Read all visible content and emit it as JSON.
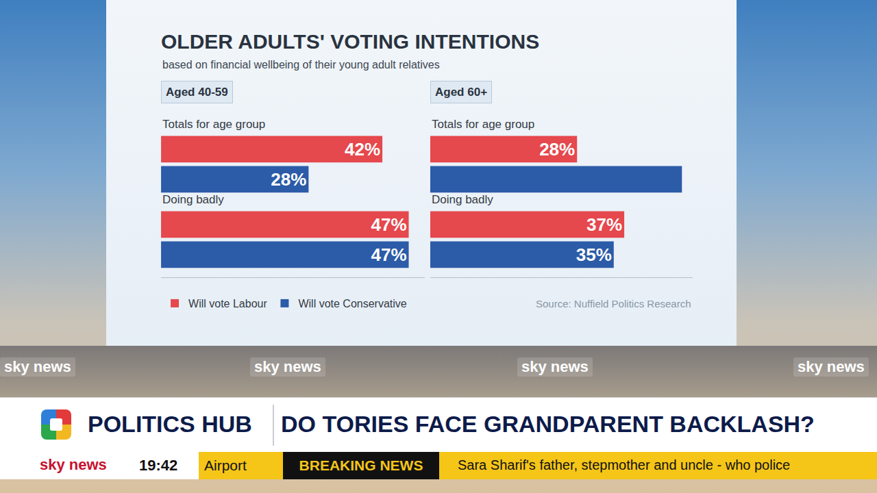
{
  "chart_data": {
    "type": "bar",
    "orientation": "horizontal",
    "title": "OLDER ADULTS' VOTING INTENTIONS",
    "subtitle": "based on financial wellbeing of their young adult relatives",
    "source": "Source: Nuffield Politics Research",
    "data_labels": true,
    "tick_labels": false,
    "legend": "bottom",
    "xlim": [
      0,
      50
    ],
    "panels": [
      {
        "title": "Aged 40-59",
        "categories": [
          "Totals for age group",
          "Doing badly"
        ],
        "series": [
          {
            "name": "Will vote Labour",
            "color": "#e5484d",
            "values": [
              42,
              47
            ],
            "value_labels": [
              "42%",
              "47%"
            ]
          },
          {
            "name": "Will vote Conservative",
            "color": "#2c5ba8",
            "values": [
              28,
              47
            ],
            "value_labels": [
              "28%",
              "47%"
            ]
          }
        ]
      },
      {
        "title": "Aged 60+",
        "categories": [
          "Totals for age group",
          "Doing badly"
        ],
        "series": [
          {
            "name": "Will vote Labour",
            "color": "#e5484d",
            "values": [
              28,
              37
            ],
            "value_labels": [
              "28%",
              "37%"
            ]
          },
          {
            "name": "Will vote Conservative",
            "color": "#2c5ba8",
            "values": [
              48,
              35
            ],
            "value_labels": [
              null,
              "35%"
            ]
          }
        ]
      }
    ]
  },
  "screen": {
    "watermark": "sky news",
    "hub": "POLITICS HUB",
    "headline": "DO TORIES FACE GRANDPARENT BACKLASH?",
    "brand": "sky news",
    "clock": "19:42",
    "previous_item": "Airport",
    "breaking": "BREAKING NEWS",
    "ticker": "Sara Sharif's father, stepmother and uncle - who police"
  }
}
